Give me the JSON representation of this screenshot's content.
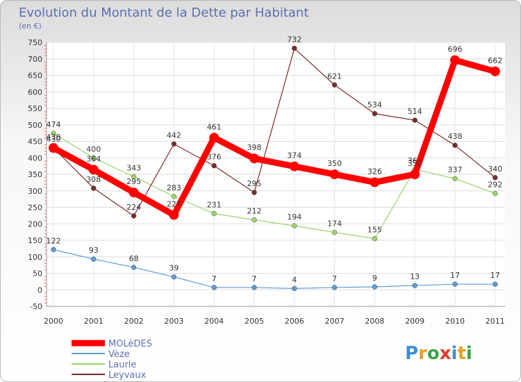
{
  "chart_data": {
    "type": "line",
    "title": "Evolution du Montant de la Dette par Habitant",
    "subtitle": "(en €)",
    "xlabel": "",
    "ylabel": "",
    "categories": [
      "2000",
      "2001",
      "2002",
      "2003",
      "2004",
      "2005",
      "2006",
      "2007",
      "2008",
      "2009",
      "2010",
      "2011"
    ],
    "ylim": [
      -50,
      750
    ],
    "yticks": [
      -50,
      0,
      50,
      100,
      150,
      200,
      250,
      300,
      350,
      400,
      450,
      500,
      550,
      600,
      650,
      700,
      750
    ],
    "grid": true,
    "legend_position": "bottom-left",
    "series": [
      {
        "name": "MOLèDES",
        "color": "#ff0000",
        "values": [
          430,
          364,
          295,
          227,
          461,
          398,
          374,
          350,
          326,
          350,
          696,
          662
        ],
        "labels": [
          "430",
          "364",
          "295",
          "227",
          "461",
          "398",
          "374",
          "350",
          "326",
          "350",
          "696",
          "662"
        ]
      },
      {
        "name": "Vèze",
        "color": "#5b9bd0",
        "values": [
          122,
          93,
          68,
          39,
          7,
          7,
          4,
          7,
          9,
          13,
          17,
          17
        ],
        "labels": [
          "122",
          "93",
          "68",
          "39",
          "7",
          "7",
          "4",
          "7",
          "9",
          "13",
          "17",
          "17"
        ]
      },
      {
        "name": "Laurie",
        "color": "#99d466",
        "values": [
          474,
          400,
          343,
          283,
          231,
          212,
          194,
          174,
          155,
          365,
          337,
          292
        ],
        "labels": [
          "474",
          "400",
          "343",
          "283",
          "231",
          "212",
          "194",
          "174",
          "155",
          "365",
          "337",
          "292"
        ]
      },
      {
        "name": "Leyvaux",
        "color": "#7a2a2a",
        "values": [
          430,
          308,
          224,
          442,
          376,
          295,
          732,
          621,
          534,
          514,
          438,
          340
        ],
        "labels": [
          "430",
          "308",
          "224",
          "442",
          "376",
          "295",
          "732",
          "621",
          "534",
          "514",
          "438",
          "340"
        ]
      }
    ]
  },
  "brand": {
    "logo_text": "Proxiti"
  }
}
